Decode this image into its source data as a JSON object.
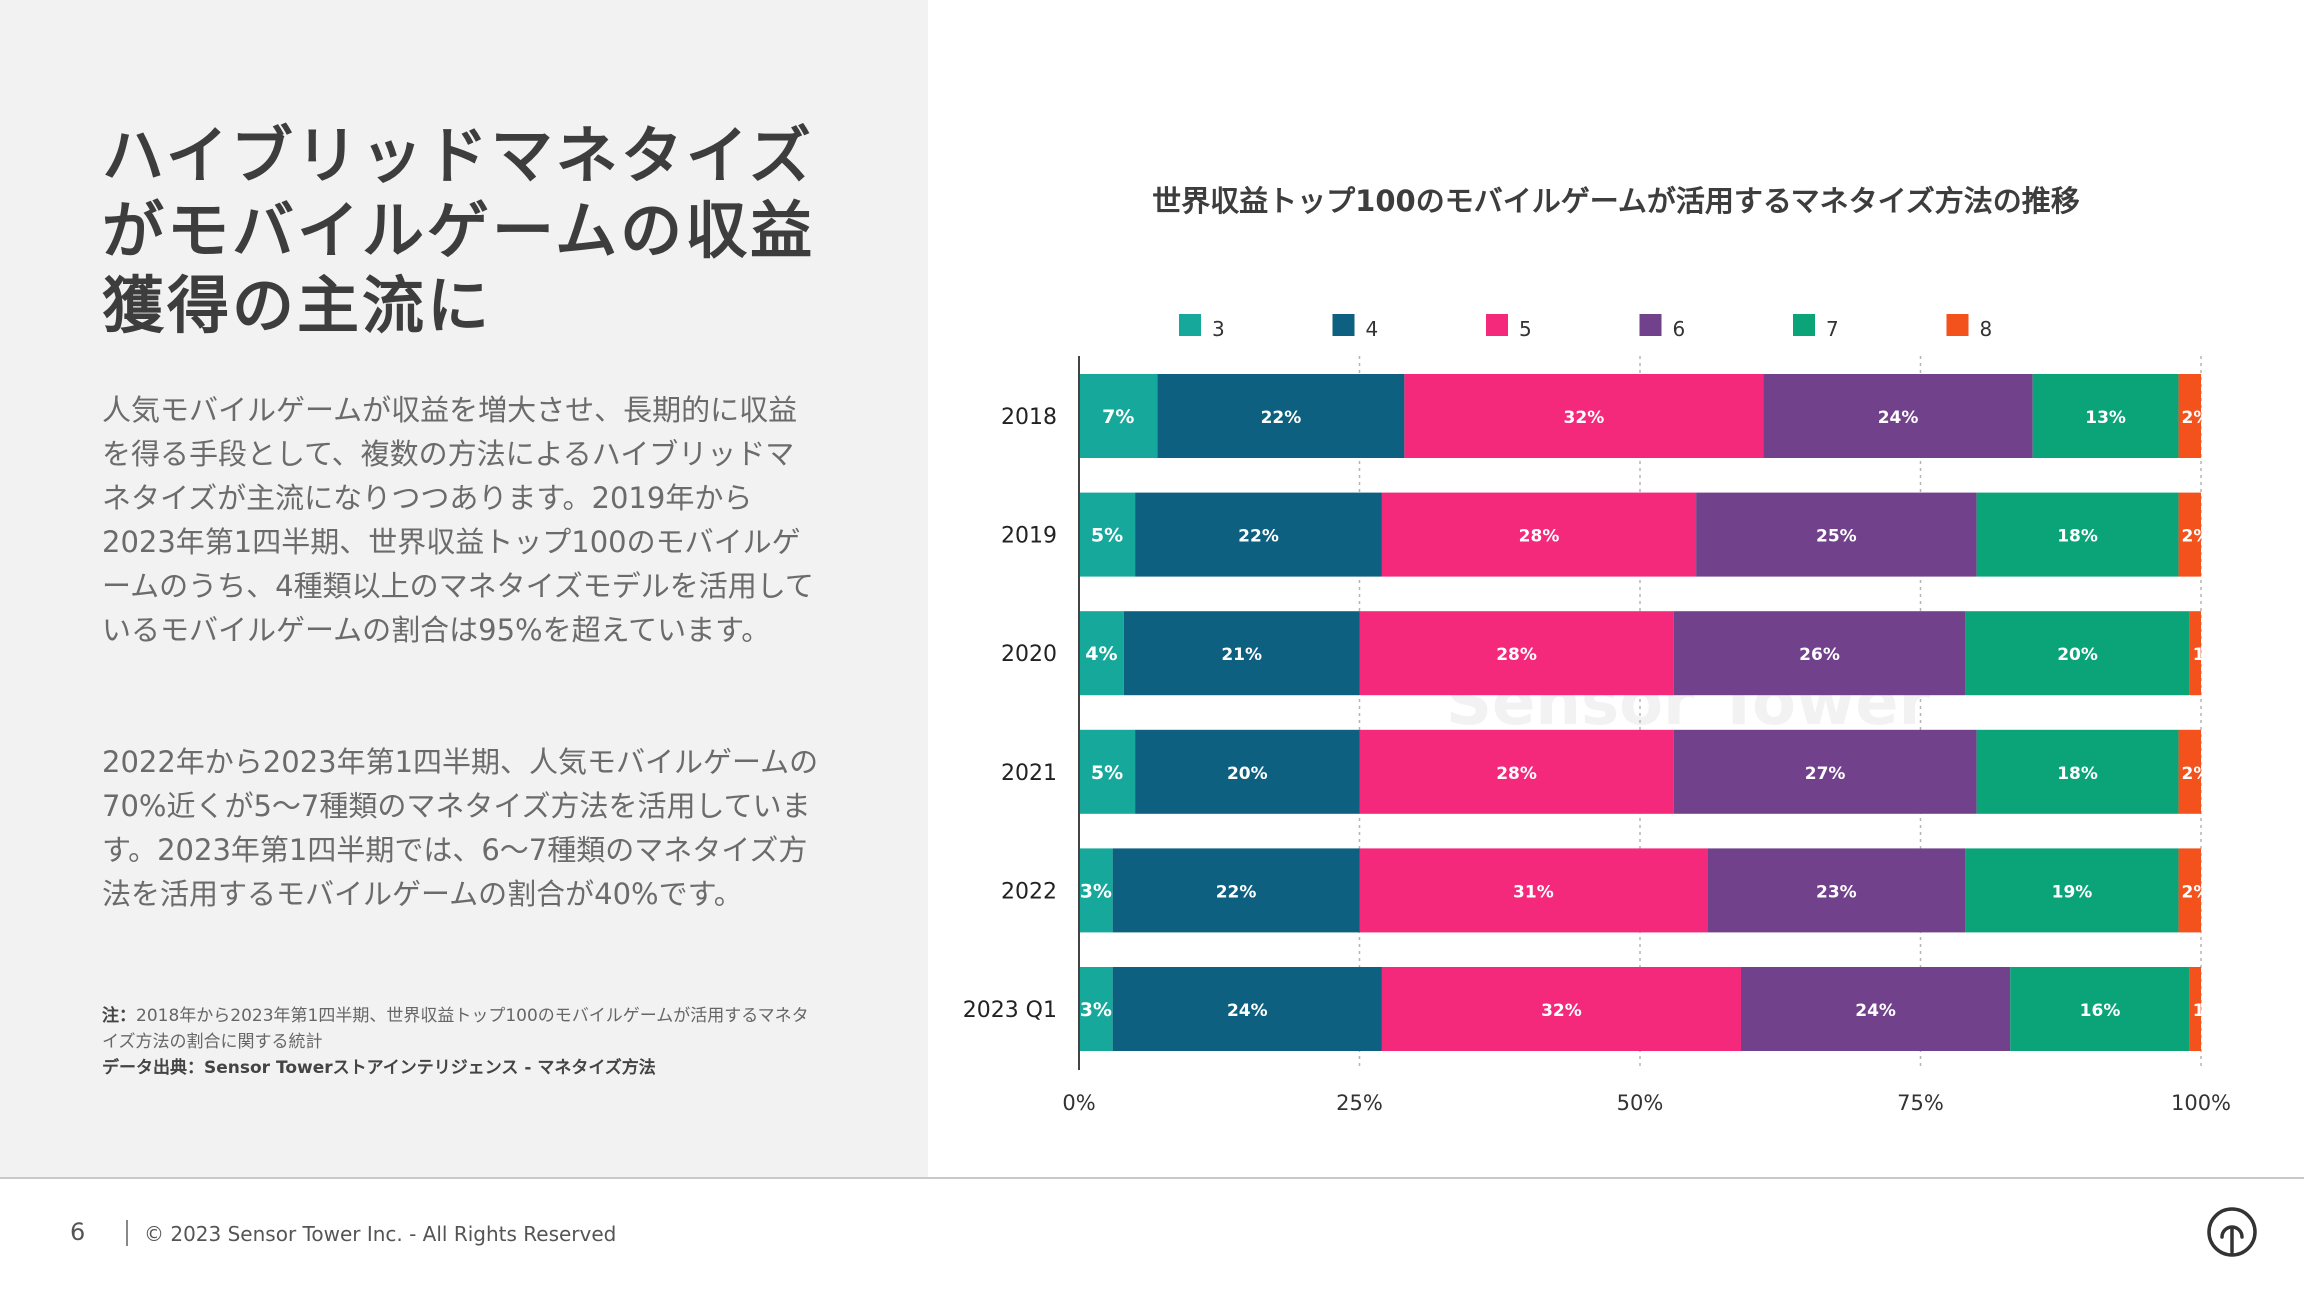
{
  "headline": "ハイブリッドマネタイズがモバイルゲームの収益獲得の主流に",
  "paragraphs": [
    "人気モバイルゲームが収益を増大させ、長期的に収益を得る手段として、複数の方法によるハイブリッドマネタイズが主流になりつつあります。2019年から2023年第1四半期、世界収益トップ100のモバイルゲームのうち、4種類以上のマネタイズモデルを活用しているモバイルゲームの割合は95%を超えています。",
    "2022年から2023年第1四半期、人気モバイルゲームの70%近くが5〜7種類のマネタイズ方法を活用しています。2023年第1四半期では、6〜7種類のマネタイズ方法を活用するモバイルゲームの割合が40%です。"
  ],
  "note": {
    "label": "注：",
    "text": "2018年から2023年第1四半期、世界収益トップ100のモバイルゲームが活用するマネタイズ方法の割合に関する統計"
  },
  "source": "データ出典：Sensor Towerストアインテリジェンス - マネタイズ方法",
  "footer": {
    "page": "6",
    "copyright": "© 2023 Sensor Tower Inc. - All Rights Reserved"
  },
  "colors": {
    "panel_bg": "#f2f2f2",
    "text_dark": "#3d3d3d",
    "text_body": "#6b6b6b"
  },
  "chart_data": {
    "type": "bar",
    "orientation": "horizontal",
    "stacked": true,
    "title": "世界収益トップ100のモバイルゲームが活用するマネタイズ方法の推移",
    "categories": [
      "2018",
      "2019",
      "2020",
      "2021",
      "2022",
      "2023 Q1"
    ],
    "series": [
      {
        "name": "3",
        "color": "#16a89b",
        "values": [
          7,
          5,
          4,
          5,
          3,
          3
        ],
        "labels": [
          "7%",
          "5%",
          "4%",
          "5%",
          "3%",
          "3%"
        ]
      },
      {
        "name": "4",
        "color": "#0d6080",
        "values": [
          22,
          22,
          21,
          20,
          22,
          24
        ],
        "labels": [
          "22%",
          "22%",
          "21%",
          "20%",
          "22%",
          "24%"
        ]
      },
      {
        "name": "5",
        "color": "#f4297c",
        "values": [
          32,
          28,
          28,
          28,
          31,
          32
        ],
        "labels": [
          "32%",
          "28%",
          "28%",
          "28%",
          "31%",
          "32%"
        ]
      },
      {
        "name": "6",
        "color": "#71418b",
        "values": [
          24,
          25,
          26,
          27,
          23,
          24
        ],
        "labels": [
          "24%",
          "25%",
          "26%",
          "27%",
          "23%",
          "24%"
        ]
      },
      {
        "name": "7",
        "color": "#0ba479",
        "values": [
          13,
          18,
          20,
          18,
          19,
          16
        ],
        "labels": [
          "13%",
          "18%",
          "20%",
          "18%",
          "19%",
          "16%"
        ]
      },
      {
        "name": "8",
        "color": "#f3521d",
        "values": [
          2,
          2,
          1,
          2,
          2,
          1
        ],
        "labels": [
          "2%",
          "2%",
          "1",
          "2%",
          "2%",
          "1"
        ]
      }
    ],
    "xlim": [
      0,
      100
    ],
    "x_ticks": [
      "0%",
      "25%",
      "50%",
      "75%",
      "100%"
    ],
    "grid": true,
    "legend_position": "top",
    "watermark": "Sensor Tower"
  }
}
